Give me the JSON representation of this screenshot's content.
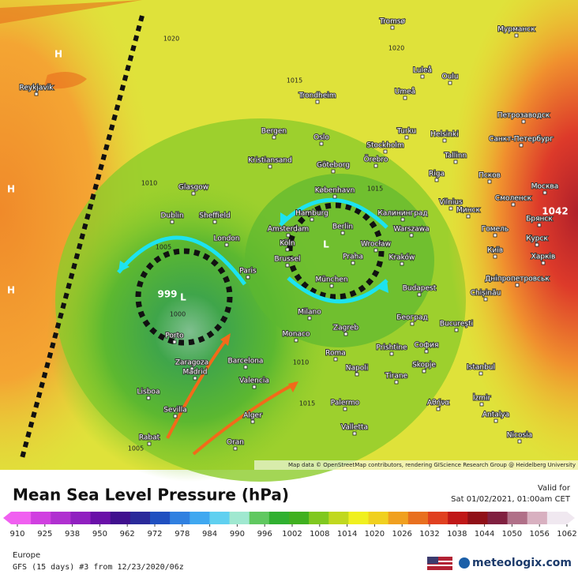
{
  "map": {
    "attribution": "Map data © OpenStreetMap contributors, rendering GIScience Research Group @ Heidelberg University",
    "cities": [
      "Reykjavik",
      "Tromsø",
      "Мурманск",
      "Luleå",
      "Oulu",
      "Umeå",
      "Trondheim",
      "Петрозаводск",
      "Bergen",
      "Turku",
      "Helsinki",
      "Санкт-Петербург",
      "Oslo",
      "Stockholm",
      "Örebro",
      "Tallinn",
      "Kristiansand",
      "Göteborg",
      "Riga",
      "Псков",
      "Glasgow",
      "København",
      "Vilnius",
      "Минск",
      "Смоленск",
      "Москва",
      "Брянск",
      "Dublin",
      "Sheffield",
      "Калининград",
      "Hamburg",
      "Berlin",
      "Amsterdam",
      "Warszawa",
      "Гомель",
      "Курск",
      "London",
      "Köln",
      "Wrocław",
      "Brussel",
      "Praha",
      "Kraków",
      "Київ",
      "Харків",
      "Paris",
      "München",
      "Budapest",
      "Дніпропетровськ",
      "Chișinău",
      "Zagreb",
      "Milano",
      "Београд",
      "Bucureşti",
      "Monaco",
      "Porto",
      "Zaragoza",
      "Barcelona",
      "Roma",
      "Prishtine",
      "София",
      "Istanbul",
      "Madrid",
      "Valencia",
      "Napoli",
      "Tirane",
      "Skopje",
      "Lisboa",
      "Palermo",
      "Αθήνα",
      "İzmir",
      "Sevilla",
      "Alger",
      "Antalya",
      "Valletta",
      "Rabat",
      "Oran",
      "Nicosia"
    ],
    "pressure_labels": [
      "H",
      "H",
      "H",
      "L",
      "L",
      "999",
      "1042",
      "1020",
      "1020",
      "1015",
      "1015",
      "1015",
      "1010",
      "1010",
      "1005",
      "1005",
      "1000"
    ]
  },
  "footer": {
    "title": "Mean Sea Level Pressure (hPa)",
    "valid_label": "Valid for",
    "valid_time": "Sat 01/02/2021, 01:00am CET",
    "region": "Europe",
    "model_run": "GFS (15 days) #3 from 12/23/2020/06z",
    "brand": "meteologix.com",
    "scale": {
      "ticks": [
        910,
        925,
        938,
        950,
        962,
        972,
        978,
        984,
        990,
        996,
        1002,
        1008,
        1014,
        1020,
        1026,
        1032,
        1038,
        1044,
        1050,
        1056,
        1062
      ],
      "colors": [
        "#f060f0",
        "#d040e0",
        "#b030d0",
        "#9020c0",
        "#6a10a8",
        "#40108e",
        "#2a2a9a",
        "#2050c0",
        "#3080e0",
        "#40a8f0",
        "#60d0f0",
        "#a0e8d0",
        "#60c860",
        "#30b030",
        "#40b020",
        "#80c820",
        "#c0d820",
        "#f0f020",
        "#f0d020",
        "#f0a020",
        "#e87020",
        "#e04020",
        "#c01818",
        "#901018",
        "#802040",
        "#b07088",
        "#d8b0c0",
        "#f0e8f0"
      ]
    }
  }
}
